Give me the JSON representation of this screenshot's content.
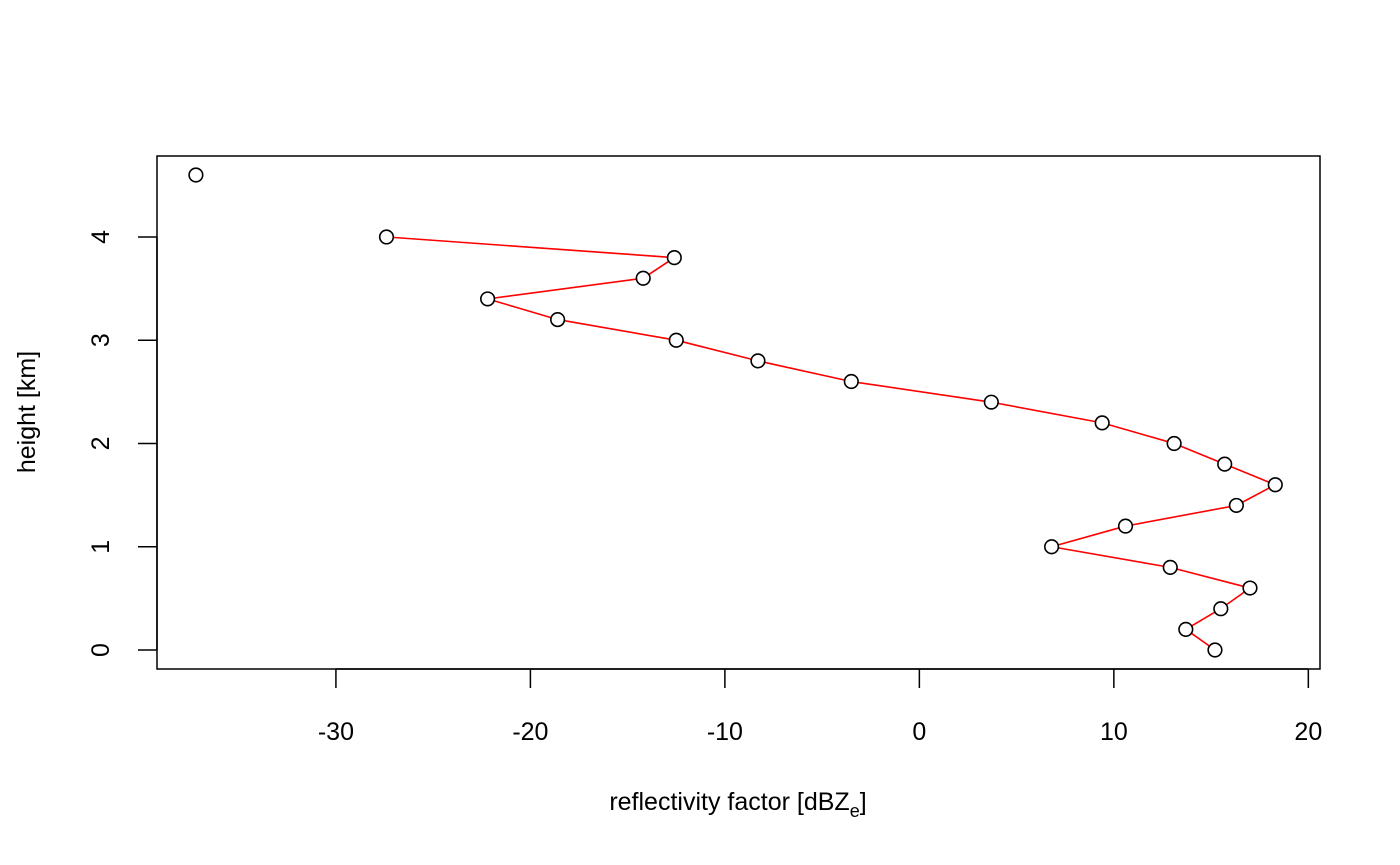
{
  "chart_data": {
    "type": "scatter",
    "title": "",
    "xlabel": "reflectivity factor [dBZ",
    "xlabel_sub": "e",
    "xlabel_suffix": "]",
    "ylabel": "height [km]",
    "xlim": [
      -39.2,
      20.6
    ],
    "ylim": [
      -0.184,
      4.784
    ],
    "x_ticks": [
      -30,
      -20,
      -10,
      0,
      10,
      20
    ],
    "y_ticks": [
      0,
      1,
      2,
      3,
      4
    ],
    "grid": false,
    "legend": "none",
    "points_color": "#000000",
    "line_color": "#ff0000",
    "points": [
      {
        "x": -37.2,
        "y": 4.6
      },
      {
        "x": -27.4,
        "y": 4.0
      },
      {
        "x": -12.6,
        "y": 3.8
      },
      {
        "x": -14.2,
        "y": 3.6
      },
      {
        "x": -22.2,
        "y": 3.4
      },
      {
        "x": -18.6,
        "y": 3.2
      },
      {
        "x": -12.5,
        "y": 3.0
      },
      {
        "x": -8.3,
        "y": 2.8
      },
      {
        "x": -3.5,
        "y": 2.6
      },
      {
        "x": 3.7,
        "y": 2.4
      },
      {
        "x": 9.4,
        "y": 2.2
      },
      {
        "x": 13.1,
        "y": 2.0
      },
      {
        "x": 15.7,
        "y": 1.8
      },
      {
        "x": 18.3,
        "y": 1.6
      },
      {
        "x": 16.3,
        "y": 1.4
      },
      {
        "x": 10.6,
        "y": 1.2
      },
      {
        "x": 6.8,
        "y": 1.0
      },
      {
        "x": 12.9,
        "y": 0.8
      },
      {
        "x": 17.0,
        "y": 0.6
      },
      {
        "x": 15.5,
        "y": 0.4
      },
      {
        "x": 13.7,
        "y": 0.2
      },
      {
        "x": 15.2,
        "y": 0.0
      }
    ],
    "line_from_index": 1
  }
}
